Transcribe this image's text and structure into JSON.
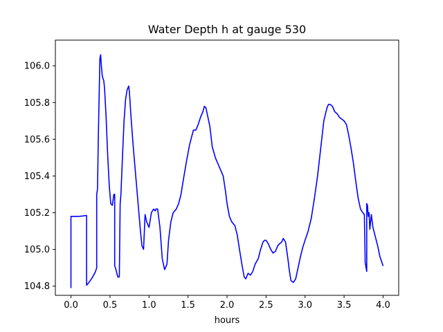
{
  "chart_data": {
    "type": "line",
    "title": "Water Depth h at gauge 530",
    "xlabel": "hours",
    "ylabel": "",
    "xlim": [
      -0.2,
      4.2
    ],
    "ylim": [
      104.75,
      106.14
    ],
    "xticks": [
      0.0,
      0.5,
      1.0,
      1.5,
      2.0,
      2.5,
      3.0,
      3.5,
      4.0
    ],
    "xtick_labels": [
      "0.0",
      "0.5",
      "1.0",
      "1.5",
      "2.0",
      "2.5",
      "3.0",
      "3.5",
      "4.0"
    ],
    "yticks": [
      104.8,
      105.0,
      105.2,
      105.4,
      105.6,
      105.8,
      106.0
    ],
    "ytick_labels": [
      "104.8",
      "105.0",
      "105.2",
      "105.4",
      "105.6",
      "105.8",
      "106.0"
    ],
    "grid": false,
    "series": [
      {
        "color": "#0000ff",
        "x": [
          0.0,
          0.0,
          0.05,
          0.1,
          0.15,
          0.19,
          0.2,
          0.2,
          0.23,
          0.27,
          0.31,
          0.33,
          0.33,
          0.34,
          0.35,
          0.37,
          0.38,
          0.39,
          0.4,
          0.41,
          0.42,
          0.43,
          0.45,
          0.47,
          0.49,
          0.51,
          0.53,
          0.55,
          0.56,
          0.56,
          0.57,
          0.6,
          0.62,
          0.63,
          0.64,
          0.66,
          0.68,
          0.7,
          0.72,
          0.74,
          0.75,
          0.77,
          0.8,
          0.83,
          0.86,
          0.89,
          0.91,
          0.93,
          0.95,
          0.97,
          1.0,
          1.03,
          1.06,
          1.08,
          1.09,
          1.11,
          1.14,
          1.17,
          1.2,
          1.23,
          1.25,
          1.28,
          1.31,
          1.35,
          1.38,
          1.41,
          1.44,
          1.48,
          1.52,
          1.55,
          1.57,
          1.6,
          1.63,
          1.66,
          1.69,
          1.71,
          1.73,
          1.75,
          1.78,
          1.81,
          1.85,
          1.88,
          1.91,
          1.95,
          1.98,
          2.0,
          2.03,
          2.06,
          2.1,
          2.13,
          2.16,
          2.19,
          2.22,
          2.24,
          2.27,
          2.3,
          2.33,
          2.36,
          2.4,
          2.43,
          2.46,
          2.48,
          2.5,
          2.53,
          2.56,
          2.59,
          2.62,
          2.65,
          2.67,
          2.7,
          2.72,
          2.75,
          2.78,
          2.8,
          2.82,
          2.85,
          2.88,
          2.91,
          2.94,
          2.97,
          3.0,
          3.04,
          3.08,
          3.12,
          3.16,
          3.2,
          3.24,
          3.28,
          3.3,
          3.32,
          3.35,
          3.38,
          3.41,
          3.44,
          3.47,
          3.5,
          3.53,
          3.56,
          3.59,
          3.62,
          3.65,
          3.68,
          3.71,
          3.74,
          3.76,
          3.77,
          3.77,
          3.79,
          3.79,
          3.8,
          3.81,
          3.82,
          3.83,
          3.84,
          3.85,
          3.87,
          3.9,
          3.93,
          3.96,
          4.0
        ],
        "y": [
          104.79,
          105.18,
          105.18,
          105.18,
          105.182,
          105.185,
          105.185,
          104.805,
          104.82,
          104.845,
          104.875,
          104.9,
          105.3,
          105.33,
          105.6,
          106.04,
          106.06,
          106.0,
          105.95,
          105.93,
          105.92,
          105.88,
          105.72,
          105.52,
          105.35,
          105.25,
          105.24,
          105.3,
          105.3,
          104.91,
          104.9,
          104.85,
          104.85,
          105.25,
          105.3,
          105.5,
          105.7,
          105.82,
          105.87,
          105.89,
          105.85,
          105.72,
          105.55,
          105.4,
          105.25,
          105.1,
          105.02,
          105.0,
          105.19,
          105.15,
          105.12,
          105.2,
          105.22,
          105.21,
          105.22,
          105.22,
          105.12,
          104.95,
          104.89,
          104.92,
          105.05,
          105.15,
          105.2,
          105.22,
          105.25,
          105.3,
          105.38,
          105.48,
          105.57,
          105.62,
          105.65,
          105.65,
          105.68,
          105.72,
          105.75,
          105.78,
          105.77,
          105.73,
          105.67,
          105.56,
          105.5,
          105.47,
          105.44,
          105.4,
          105.32,
          105.25,
          105.18,
          105.15,
          105.13,
          105.08,
          105.0,
          104.92,
          104.85,
          104.84,
          104.87,
          104.86,
          104.88,
          104.92,
          104.95,
          105.0,
          105.04,
          105.05,
          105.05,
          105.03,
          105.0,
          104.98,
          104.99,
          105.02,
          105.03,
          105.04,
          105.06,
          105.04,
          104.95,
          104.88,
          104.83,
          104.82,
          104.84,
          104.9,
          104.96,
          105.01,
          105.05,
          105.1,
          105.17,
          105.28,
          105.4,
          105.55,
          105.7,
          105.77,
          105.79,
          105.79,
          105.78,
          105.75,
          105.74,
          105.72,
          105.71,
          105.7,
          105.68,
          105.62,
          105.55,
          105.47,
          105.37,
          105.28,
          105.22,
          105.2,
          105.19,
          104.96,
          104.93,
          104.88,
          105.25,
          105.24,
          105.18,
          105.2,
          105.11,
          105.15,
          105.19,
          105.12,
          105.07,
          105.02,
          104.96,
          104.91
        ]
      }
    ]
  }
}
